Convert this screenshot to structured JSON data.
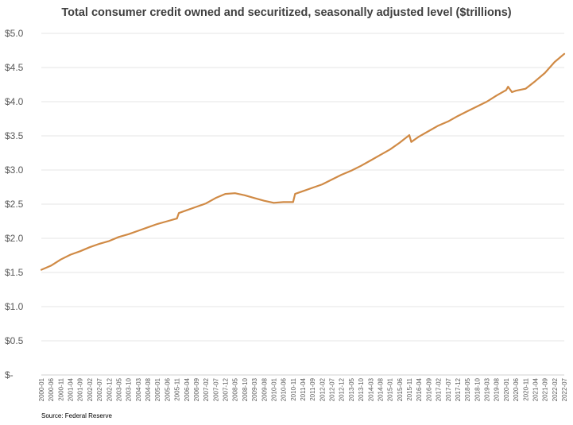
{
  "chart_data": {
    "type": "line",
    "title": "Total consumer credit owned and securitized, seasonally adjusted level ($trillions)",
    "source": "Source:  Federal Reserve",
    "xlabel": "",
    "ylabel": "",
    "ylim": [
      0,
      5.0
    ],
    "yticks": [
      "$-",
      "$0.5",
      "$1.0",
      "$1.5",
      "$2.0",
      "$2.5",
      "$3.0",
      "$3.5",
      "$4.0",
      "$4.5",
      "$5.0"
    ],
    "xticks": [
      "2000-01",
      "2000-06",
      "2000-11",
      "2001-04",
      "2001-09",
      "2002-02",
      "2002-07",
      "2002-12",
      "2003-05",
      "2003-10",
      "2004-03",
      "2004-08",
      "2005-01",
      "2005-06",
      "2005-11",
      "2006-04",
      "2006-09",
      "2007-02",
      "2007-07",
      "2007-12",
      "2008-05",
      "2008-10",
      "2009-03",
      "2009-08",
      "2010-01",
      "2010-06",
      "2010-11",
      "2011-04",
      "2011-09",
      "2012-02",
      "2012-07",
      "2012-12",
      "2013-05",
      "2013-10",
      "2014-03",
      "2014-08",
      "2015-01",
      "2015-06",
      "2015-11",
      "2016-04",
      "2016-09",
      "2017-02",
      "2017-07",
      "2017-12",
      "2018-05",
      "2018-10",
      "2019-03",
      "2019-08",
      "2020-01",
      "2020-06",
      "2020-11",
      "2021-04",
      "2021-09",
      "2022-02",
      "2022-07"
    ],
    "grid": true,
    "legend": "none",
    "color": "#D08A45",
    "series": [
      {
        "x": [
          "2000-01",
          "2000-06",
          "2000-11",
          "2001-04",
          "2001-09",
          "2002-02",
          "2002-07",
          "2002-12",
          "2003-05",
          "2003-10",
          "2004-03",
          "2004-08",
          "2005-01",
          "2005-06",
          "2005-11",
          "2005-12",
          "2006-04",
          "2006-09",
          "2007-02",
          "2007-07",
          "2007-12",
          "2008-05",
          "2008-10",
          "2009-03",
          "2009-08",
          "2010-01",
          "2010-06",
          "2010-11",
          "2010-12",
          "2011-04",
          "2011-09",
          "2012-02",
          "2012-07",
          "2012-12",
          "2013-05",
          "2013-10",
          "2014-03",
          "2014-08",
          "2015-01",
          "2015-06",
          "2015-11",
          "2015-12",
          "2016-04",
          "2016-09",
          "2017-02",
          "2017-07",
          "2017-12",
          "2018-05",
          "2018-10",
          "2019-03",
          "2019-08",
          "2020-01",
          "2020-02",
          "2020-04",
          "2020-06",
          "2020-11",
          "2021-04",
          "2021-09",
          "2022-02",
          "2022-07"
        ],
        "values": [
          1.54,
          1.6,
          1.69,
          1.76,
          1.81,
          1.87,
          1.92,
          1.96,
          2.02,
          2.06,
          2.11,
          2.16,
          2.21,
          2.25,
          2.29,
          2.37,
          2.41,
          2.46,
          2.51,
          2.59,
          2.65,
          2.66,
          2.63,
          2.59,
          2.55,
          2.52,
          2.53,
          2.53,
          2.65,
          2.69,
          2.74,
          2.79,
          2.86,
          2.93,
          2.99,
          3.06,
          3.14,
          3.22,
          3.3,
          3.4,
          3.51,
          3.41,
          3.49,
          3.57,
          3.65,
          3.71,
          3.79,
          3.86,
          3.93,
          4.0,
          4.09,
          4.17,
          4.22,
          4.14,
          4.16,
          4.19,
          4.3,
          4.42,
          4.58,
          4.7
        ]
      }
    ]
  }
}
